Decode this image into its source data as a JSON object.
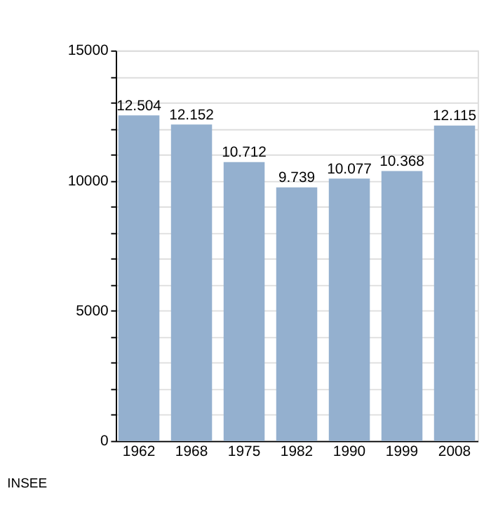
{
  "chart_data": {
    "type": "bar",
    "categories": [
      "1962",
      "1968",
      "1975",
      "1982",
      "1990",
      "1999",
      "2008"
    ],
    "values": [
      12504,
      12152,
      10712,
      9739,
      10077,
      10368,
      12115
    ],
    "value_labels": [
      "12.504",
      "12.152",
      "10.712",
      "9.739",
      "10.077",
      "10.368",
      "12.115"
    ],
    "color": "#94b0cf",
    "ylim": [
      0,
      15000
    ],
    "yticks": [
      0,
      {
        "value": 1000,
        "label": null
      },
      {
        "value": 2000,
        "label": null
      },
      {
        "value": 3000,
        "label": null
      },
      {
        "value": 4000,
        "label": null
      },
      5000,
      {
        "value": 6000,
        "label": null
      },
      {
        "value": 7000,
        "label": null
      },
      {
        "value": 8000,
        "label": null
      },
      {
        "value": 9000,
        "label": null
      },
      10000,
      {
        "value": 11000,
        "label": null
      },
      {
        "value": 12000,
        "label": null
      },
      {
        "value": 13000,
        "label": null
      },
      {
        "value": 14000,
        "label": null
      },
      15000
    ],
    "grid": true,
    "annotations": [
      "INSEE"
    ]
  }
}
